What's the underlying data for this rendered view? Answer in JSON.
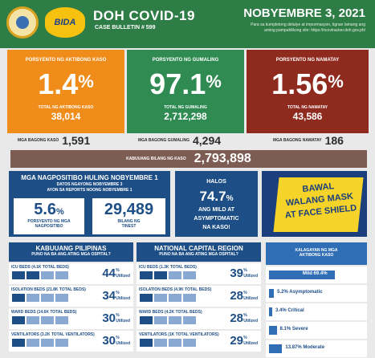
{
  "header": {
    "title": "DOH COVID-19",
    "bulletin": "CASE BULLETIN # 599",
    "date": "NOBYEMBRE 3, 2021",
    "note": "Para sa kumpletong detalye at impormasyon, tignan lamang ang aming pampublikong site: https://ncovtracker.doh.gov.ph/",
    "logo_text": "BIDA"
  },
  "stats": {
    "active": {
      "label": "PORSYENTO NG AKTIBONG KASO",
      "value": "1.4",
      "unit": "%",
      "sub_label": "TOTAL NG AKTIBONG KASO",
      "sub_value": "38,014"
    },
    "recovered": {
      "label": "PORSYENTO NG GUMALING",
      "value": "97.1",
      "unit": "%",
      "sub_label": "TOTAL NG GUMALING",
      "sub_value": "2,712,298"
    },
    "deaths": {
      "label": "PORSYENTO NG NAMATAY",
      "value": "1.56",
      "unit": "%",
      "sub_label": "TOTAL NG NAMATAY",
      "sub_value": "43,586"
    }
  },
  "new_counts": {
    "cases_label": "MGA BAGONG KASO",
    "cases": "1,591",
    "recovered_label": "MGA BAGONG GUMALING",
    "recovered": "4,294",
    "deaths_label": "MGA BAGONG NAMATAY",
    "deaths": "186"
  },
  "total": {
    "label": "KABUUANG BILANG NG KASO",
    "value": "2,793,898"
  },
  "positivity": {
    "title": "MGA NAGPOSITIBO HULING NOBYEMBRE 1",
    "subtitle_1": "DATOS NGAYONG NOBYEMBRE 3",
    "subtitle_2": "AYON SA REPORTS NOONG NOBYEMBRE 1",
    "rate": "5.6",
    "rate_unit": "%",
    "rate_caption_1": "PORSYENTO NG MGA",
    "rate_caption_2": "NAGPOSITIBO",
    "tested": "29,489",
    "tested_caption_1": "BILANG NG",
    "tested_caption_2": "TINEST"
  },
  "mild_box": {
    "line1": "HALOS",
    "value": "74.7",
    "unit": "%",
    "line2": "ANG MILD AT",
    "line3": "ASYMPTOMATIC",
    "line4": "NA KASO!"
  },
  "mask_banner": {
    "line1": "BAWAL",
    "line2": "WALANG MASK",
    "line3": "AT FACE SHIELD"
  },
  "utilized_label": "Utilized",
  "philippines": {
    "title": "KABUUANG PILIPINAS",
    "subtitle": "PUNO NA BA ANG ATING MGA OSPITAL?",
    "beds": [
      {
        "label": "ICU BEDS (4.1K TOTAL BEDS)",
        "value": "44",
        "fill": 0.44
      },
      {
        "label": "ISOLATION BEDS (21.8K TOTAL BEDS)",
        "value": "34",
        "fill": 0.34
      },
      {
        "label": "WARD BEDS (14.6K TOTAL BEDS)",
        "value": "30",
        "fill": 0.3
      },
      {
        "label": "VENTILATORS (3.2K TOTAL VENTILATORS)",
        "value": "30",
        "fill": 0.3
      }
    ]
  },
  "ncr": {
    "title": "NATIONAL CAPITAL REGION",
    "subtitle": "PUNO NA BA ANG ATING MGA OSPITAL?",
    "beds": [
      {
        "label": "ICU BEDS (1.3K TOTAL BEDS)",
        "value": "39",
        "fill": 0.39
      },
      {
        "label": "ISOLATION BEDS (4.9K TOTAL BEDS)",
        "value": "28",
        "fill": 0.28
      },
      {
        "label": "WARD BEDS (4.2K TOTAL BEDS)",
        "value": "28",
        "fill": 0.28
      },
      {
        "label": "VENTILATORS (1K TOTAL VENTILATORS)",
        "value": "29",
        "fill": 0.29
      }
    ]
  },
  "severity": {
    "title_1": "KALAGAYAN NG MGA",
    "title_2": "AKTIBONG KASO",
    "items": [
      {
        "label": "Mild 69.4%",
        "value": 69.4
      },
      {
        "label": "5.2% Asymptomatic",
        "value": 5.2
      },
      {
        "label": "3.4% Critical",
        "value": 3.4
      },
      {
        "label": "8.1% Severe",
        "value": 8.1
      },
      {
        "label": "13.87% Moderate",
        "value": 13.87
      }
    ]
  }
}
